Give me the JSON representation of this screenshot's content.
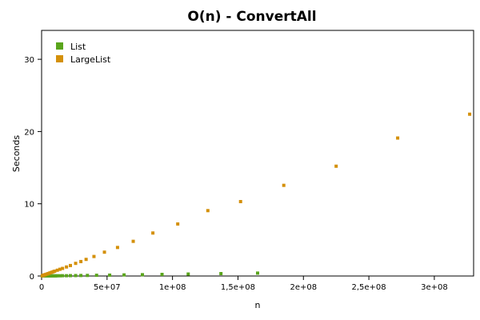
{
  "chart_data": {
    "type": "scatter",
    "title": "O(n) - ConvertAll",
    "xlabel": "n",
    "ylabel": "Seconds",
    "xlim": [
      0,
      330000000
    ],
    "ylim": [
      0,
      34
    ],
    "xticks": [
      {
        "value": 0,
        "label": "0"
      },
      {
        "value": 50000000,
        "label": "5e+07"
      },
      {
        "value": 100000000,
        "label": "1e+08"
      },
      {
        "value": 150000000,
        "label": "1,5e+08"
      },
      {
        "value": 200000000,
        "label": "2e+08"
      },
      {
        "value": 250000000,
        "label": "2,5e+08"
      },
      {
        "value": 300000000,
        "label": "3e+08"
      }
    ],
    "yticks": [
      {
        "value": 0,
        "label": "0"
      },
      {
        "value": 10,
        "label": "10"
      },
      {
        "value": 20,
        "label": "20"
      },
      {
        "value": 30,
        "label": "30"
      }
    ],
    "grid": false,
    "legend_position": "top-left",
    "series": [
      {
        "name": "List",
        "color": "#5aa51c",
        "points": [
          [
            500000,
            0.0
          ],
          [
            1000000,
            0.0
          ],
          [
            1500000,
            0.0
          ],
          [
            2000000,
            0.01
          ],
          [
            2500000,
            0.01
          ],
          [
            3000000,
            0.01
          ],
          [
            4000000,
            0.01
          ],
          [
            5000000,
            0.01
          ],
          [
            6000000,
            0.01
          ],
          [
            7000000,
            0.01
          ],
          [
            8000000,
            0.02
          ],
          [
            9000000,
            0.02
          ],
          [
            10000000,
            0.02
          ],
          [
            11000000,
            0.02
          ],
          [
            12000000,
            0.03
          ],
          [
            14000000,
            0.03
          ],
          [
            16000000,
            0.04
          ],
          [
            19000000,
            0.04
          ],
          [
            22000000,
            0.05
          ],
          [
            26000000,
            0.06
          ],
          [
            30000000,
            0.07
          ],
          [
            35000000,
            0.08
          ],
          [
            42000000,
            0.1
          ],
          [
            52000000,
            0.12
          ],
          [
            63000000,
            0.15
          ],
          [
            77000000,
            0.18
          ],
          [
            92000000,
            0.22
          ],
          [
            112000000,
            0.27
          ],
          [
            137000000,
            0.33
          ],
          [
            165000000,
            0.4
          ]
        ]
      },
      {
        "name": "LargeList",
        "color": "#d4900a",
        "points": [
          [
            500000,
            0.03
          ],
          [
            1000000,
            0.07
          ],
          [
            1500000,
            0.1
          ],
          [
            2000000,
            0.14
          ],
          [
            2500000,
            0.17
          ],
          [
            3000000,
            0.2
          ],
          [
            4000000,
            0.27
          ],
          [
            5000000,
            0.33
          ],
          [
            6000000,
            0.4
          ],
          [
            7000000,
            0.47
          ],
          [
            8000000,
            0.53
          ],
          [
            9000000,
            0.6
          ],
          [
            10000000,
            0.67
          ],
          [
            12000000,
            0.8
          ],
          [
            14000000,
            0.93
          ],
          [
            16000000,
            1.05
          ],
          [
            19000000,
            1.25
          ],
          [
            22000000,
            1.45
          ],
          [
            26000000,
            1.75
          ],
          [
            30000000,
            2.0
          ],
          [
            34000000,
            2.3
          ],
          [
            40000000,
            2.7
          ],
          [
            48000000,
            3.3
          ],
          [
            58000000,
            3.95
          ],
          [
            70000000,
            4.8
          ],
          [
            85000000,
            5.95
          ],
          [
            104000000,
            7.2
          ],
          [
            127000000,
            9.05
          ],
          [
            152000000,
            10.3
          ],
          [
            185000000,
            12.55
          ],
          [
            225000000,
            15.2
          ],
          [
            272000000,
            19.1
          ],
          [
            327000000,
            22.4
          ]
        ]
      }
    ]
  }
}
